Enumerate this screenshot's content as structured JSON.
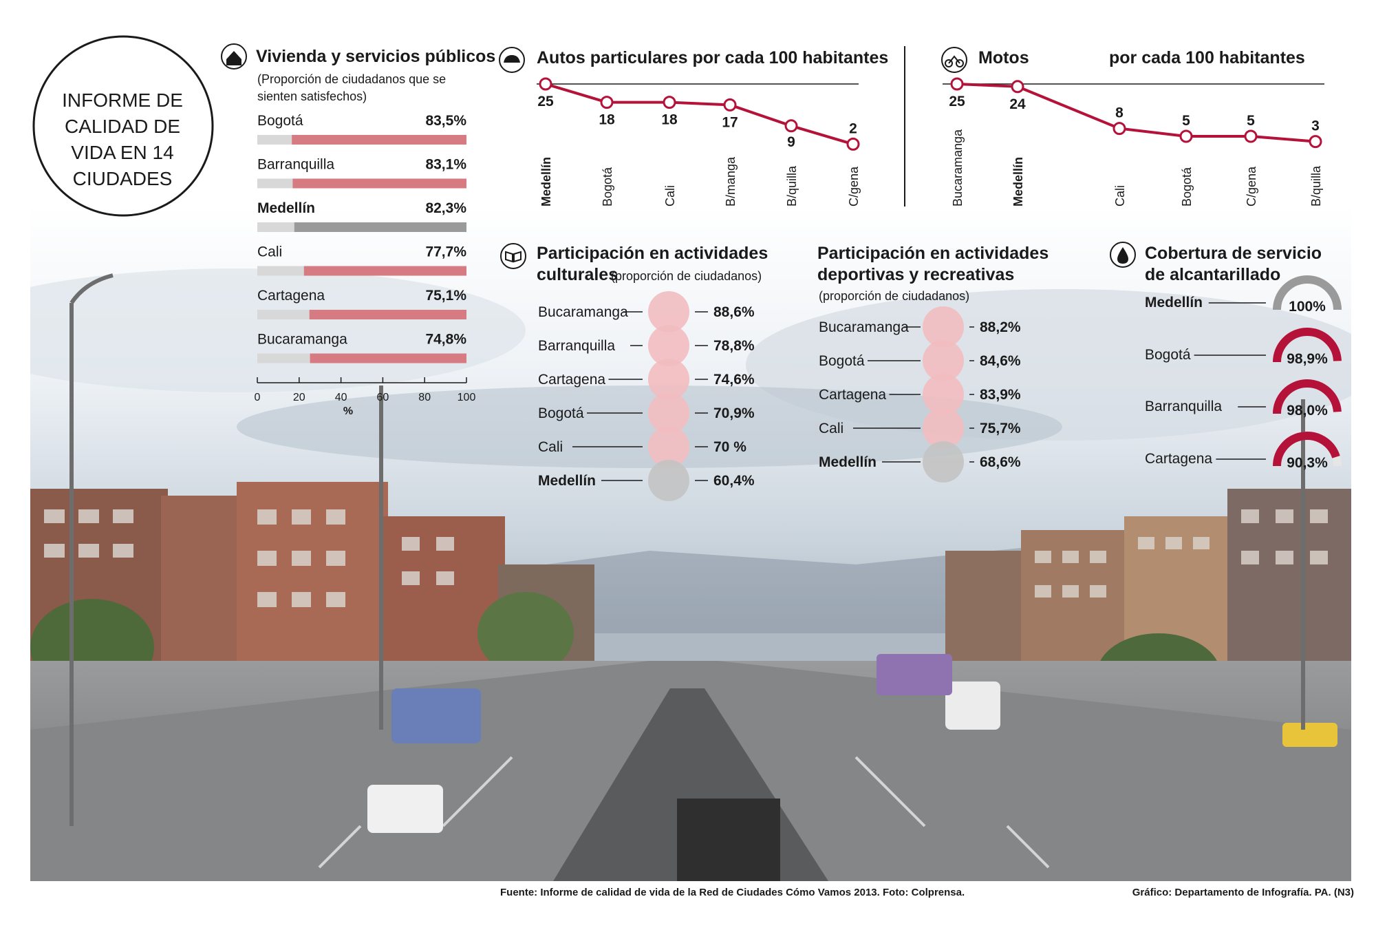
{
  "header": {
    "title_lines": [
      "INFORME DE",
      "CALIDAD DE",
      "VIDA EN 14",
      "CIUDADES"
    ]
  },
  "colors": {
    "accent": "#b5123a",
    "bar_red": "#d77b82",
    "bar_light": "#d8d8d8",
    "bar_gray": "#9a9a9a",
    "bubble_pink": "#f2bcc0",
    "bubble_gray": "#c3c3c3"
  },
  "chart_data": [
    {
      "id": "vivienda",
      "type": "bar",
      "title": "Vivienda y servicios públicos",
      "subtitle": "(Proporción de ciudadanos que se sienten satisfechos)",
      "icon": "house-icon",
      "categories": [
        "Bogotá",
        "Barranquilla",
        "Medellín",
        "Cali",
        "Cartagena",
        "Bucaramanga"
      ],
      "values": [
        83.5,
        83.1,
        82.3,
        77.7,
        75.1,
        74.8
      ],
      "value_labels": [
        "83,5%",
        "83,1%",
        "82,3%",
        "77,7%",
        "75,1%",
        "74,8%"
      ],
      "highlight": "Medellín",
      "xlim": [
        0,
        100
      ],
      "x_ticks": [
        "0",
        "20",
        "40",
        "60",
        "80",
        "100"
      ],
      "xlabel": "%"
    },
    {
      "id": "autos",
      "type": "line",
      "title": "Autos particulares por cada 100 habitantes",
      "icon": "car-icon",
      "categories": [
        "Medellín",
        "Bogotá",
        "Cali",
        "B/manga",
        "B/quilla",
        "C/gena"
      ],
      "values": [
        25,
        18,
        18,
        17,
        9,
        2
      ],
      "value_labels": [
        "25",
        "18",
        "18",
        "17",
        "9",
        "2"
      ],
      "ylim": [
        0,
        25
      ]
    },
    {
      "id": "motos",
      "type": "line",
      "title": "Motos",
      "title_right": "por cada 100 habitantes",
      "icon": "motorcycle-icon",
      "categories": [
        "Bucaramanga",
        "Medellín",
        "Cali",
        "Bogotá",
        "C/gena",
        "B/quilla"
      ],
      "values": [
        25,
        24,
        8,
        5,
        5,
        3
      ],
      "value_labels": [
        "25",
        "24",
        "8",
        "5",
        "5",
        "3"
      ],
      "ylim": [
        0,
        25
      ]
    },
    {
      "id": "culturales",
      "type": "scatter",
      "title_lines": [
        "Participación en actividades",
        "culturales"
      ],
      "subtitle": "(proporción de ciudadanos)",
      "icon": "book-icon",
      "categories": [
        "Bucaramanga",
        "Barranquilla",
        "Cartagena",
        "Bogotá",
        "Cali",
        "Medellín"
      ],
      "values": [
        88.6,
        78.8,
        74.6,
        70.9,
        70,
        60.4
      ],
      "value_labels": [
        "88,6%",
        "78,8%",
        "74,6%",
        "70,9%",
        "70 %",
        "60,4%"
      ],
      "highlight": "Medellín"
    },
    {
      "id": "deportivas",
      "type": "scatter",
      "title_lines": [
        "Participación en actividades",
        "deportivas y recreativas"
      ],
      "subtitle": "(proporción de ciudadanos)",
      "categories": [
        "Bucaramanga",
        "Bogotá",
        "Cartagena",
        "Cali",
        "Medellín"
      ],
      "values": [
        88.2,
        84.6,
        83.9,
        75.7,
        68.6
      ],
      "value_labels": [
        "88,2%",
        "84,6%",
        "83,9%",
        "75,7%",
        "68,6%"
      ],
      "highlight": "Medellín"
    },
    {
      "id": "alcantarillado",
      "type": "pie",
      "title_lines": [
        "Cobertura de servicio",
        "de alcantarillado"
      ],
      "icon": "drop-icon",
      "categories": [
        "Medellín",
        "Bogotá",
        "Barranquilla",
        "Cartagena"
      ],
      "values": [
        100,
        98.9,
        98.0,
        90.3
      ],
      "value_labels": [
        "100%",
        "98,9%",
        "98,0%",
        "90,3%"
      ],
      "highlight": "Medellín"
    }
  ],
  "footer": {
    "source": "Fuente: Informe de calidad de vida de la Red de Ciudades Cómo Vamos 2013. Foto: Colprensa.",
    "credit": "Gráfico: Departamento de Infografía. PA. (N3)"
  }
}
